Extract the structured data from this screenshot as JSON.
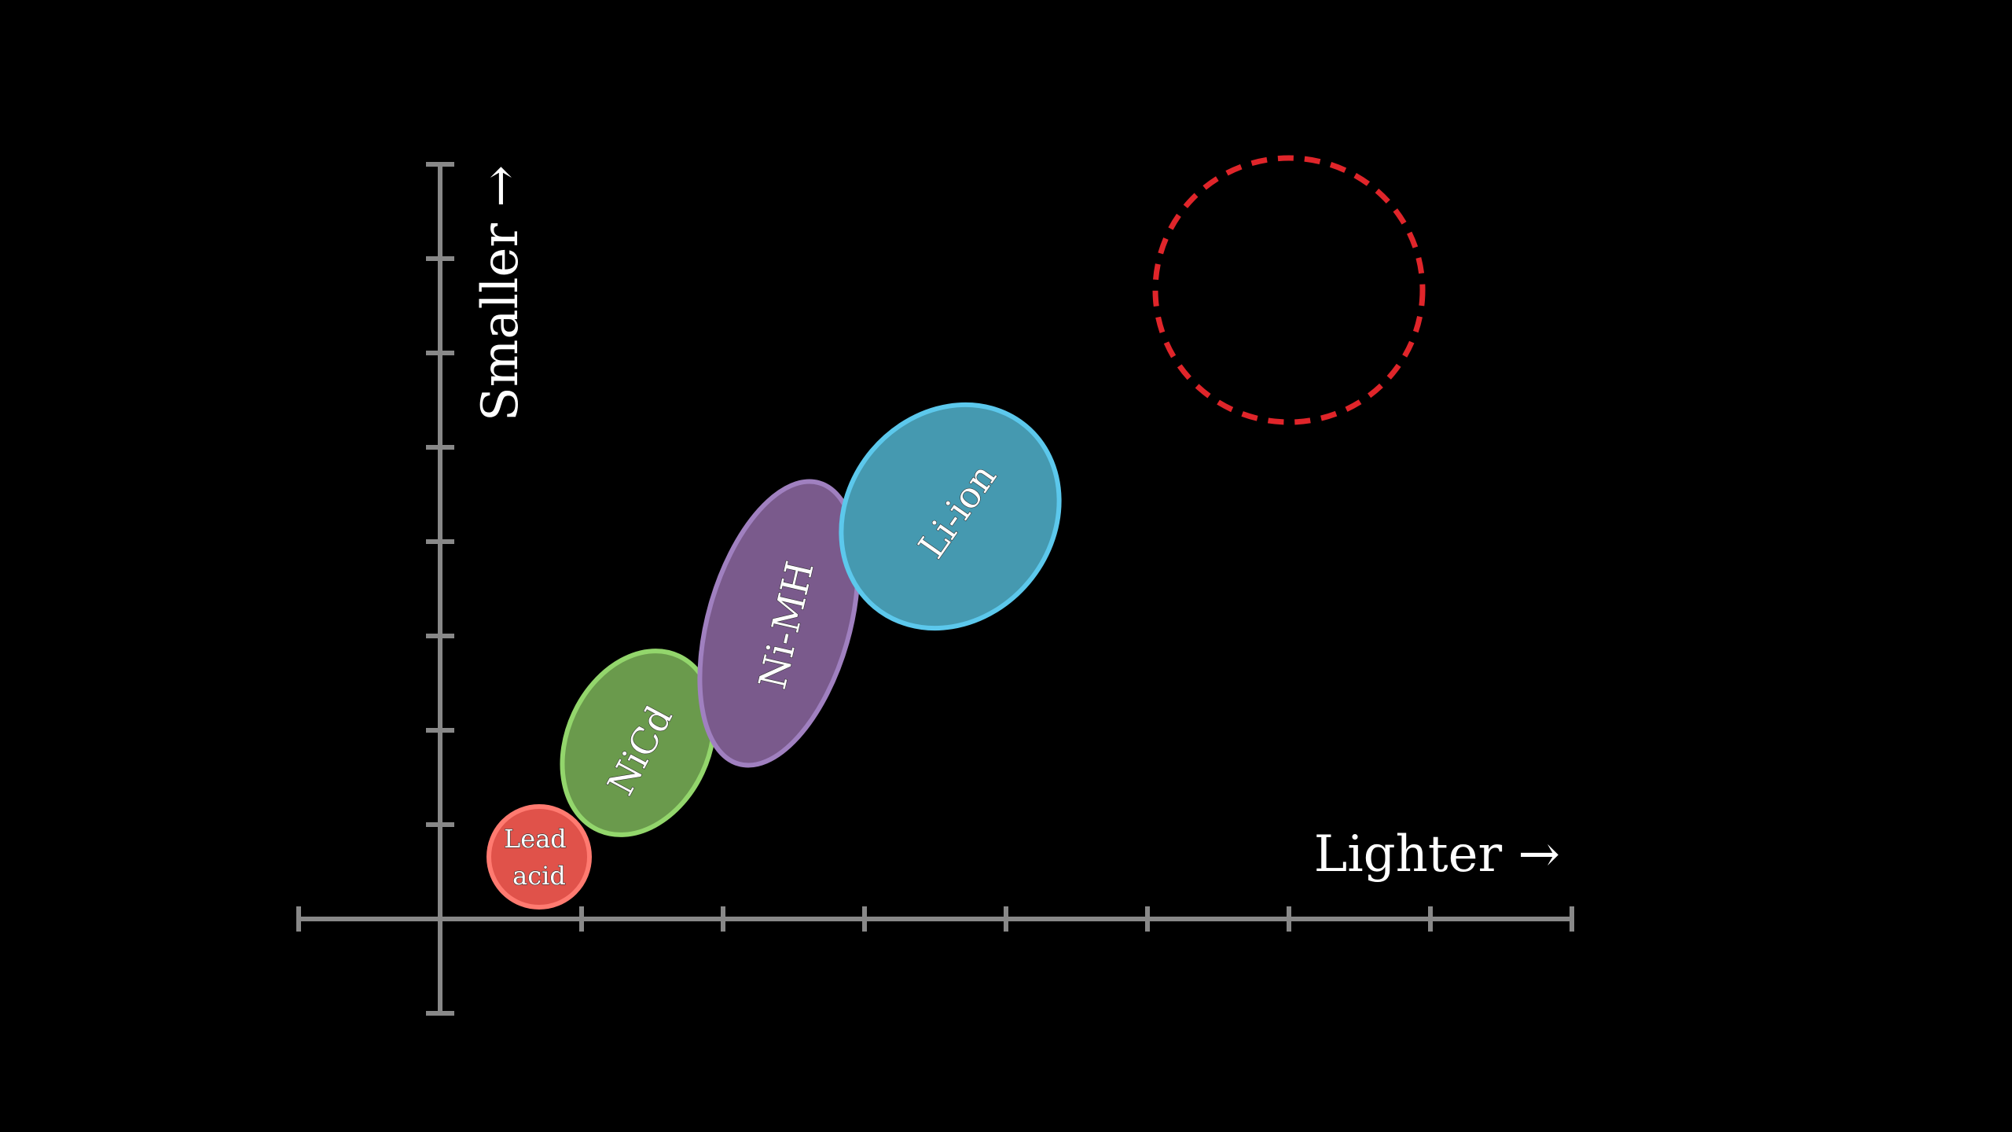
{
  "axes": {
    "x_label": "Lighter →",
    "y_label": "Smaller →",
    "x_ticks": 9,
    "y_ticks": 9
  },
  "regions": [
    {
      "id": "lead-acid",
      "lines": [
        "Lead",
        "acid"
      ],
      "fill": "#e0524a",
      "stroke": "#ff7a70"
    },
    {
      "id": "nicd",
      "lines": [
        "NiCd"
      ],
      "fill": "#6a9a4c",
      "stroke": "#93d66c"
    },
    {
      "id": "nimh",
      "lines": [
        "Ni-MH"
      ],
      "fill": "#7a5a8c",
      "stroke": "#a080c0"
    },
    {
      "id": "li-ion",
      "lines": [
        "Li-ion"
      ],
      "fill": "#4599b0",
      "stroke": "#5cc8ec"
    }
  ],
  "target": {
    "stroke": "#e0252a",
    "style": "dashed"
  }
}
